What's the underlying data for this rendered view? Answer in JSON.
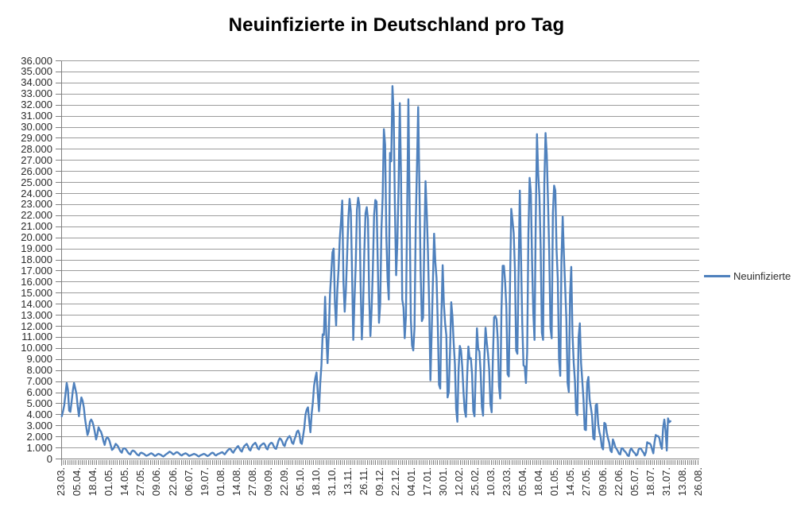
{
  "title": "Neuinfizierte in Deutschland pro Tag",
  "legend": {
    "label": "Neuinfizierte"
  },
  "colors": {
    "line": "#4f81bd",
    "grid": "#9c9c9c",
    "axis": "#7f7f7f",
    "text": "#2b2b2b",
    "title": "#000000",
    "background": "#ffffff"
  },
  "chart_data": {
    "type": "line",
    "title": "Neuinfizierte in Deutschland pro Tag",
    "legend_position": "right",
    "grid": true,
    "y_min": 0,
    "y_max": 36000,
    "y_step": 1000,
    "y_tick_labels": [
      "0",
      "1.000",
      "2.000",
      "3.000",
      "4.000",
      "5.000",
      "6.000",
      "7.000",
      "8.000",
      "9.000",
      "10.000",
      "11.000",
      "12.000",
      "13.000",
      "14.000",
      "15.000",
      "16.000",
      "17.000",
      "18.000",
      "19.000",
      "20.000",
      "21.000",
      "22.000",
      "23.000",
      "24.000",
      "25.000",
      "26.000",
      "27.000",
      "28.000",
      "29.000",
      "30.000",
      "31.000",
      "32.000",
      "33.000",
      "34.000",
      "35.000",
      "36.000"
    ],
    "x_tick_labels": [
      "23.03.",
      "05.04.",
      "18.04.",
      "01.05.",
      "14.05.",
      "27.05.",
      "09.06.",
      "22.06.",
      "06.07.",
      "19.07.",
      "01.08.",
      "14.08.",
      "27.08.",
      "09.09.",
      "22.09.",
      "05.10.",
      "18.10.",
      "31.10.",
      "13.11.",
      "26.11.",
      "09.12.",
      "22.12.",
      "04.01.",
      "17.01.",
      "30.01.",
      "12.02.",
      "25.02.",
      "10.03.",
      "23.03.",
      "05.04.",
      "18.04.",
      "01.05.",
      "14.05.",
      "27.05.",
      "09.06.",
      "22.06.",
      "05.07.",
      "18.07.",
      "31.07.",
      "13.08.",
      "26.08."
    ],
    "x_label_step_days": 13,
    "x_total_categories": 521,
    "series": [
      {
        "name": "Neuinfizierte",
        "color": "#4f81bd",
        "start_date": "23.03.2020",
        "end_date": "02.08.2021",
        "values": [
          3900,
          4350,
          4900,
          5900,
          6900,
          6300,
          4400,
          4300,
          5200,
          6200,
          6900,
          6400,
          5900,
          4750,
          3900,
          4900,
          5600,
          5300,
          4700,
          3650,
          2900,
          2200,
          2550,
          3400,
          3600,
          3400,
          3000,
          2450,
          1800,
          2250,
          2900,
          2650,
          2500,
          2150,
          1650,
          1300,
          1800,
          2000,
          1900,
          1650,
          1250,
          850,
          950,
          1150,
          1400,
          1300,
          1150,
          900,
          700,
          600,
          950,
          1000,
          950,
          800,
          620,
          500,
          450,
          700,
          800,
          750,
          650,
          500,
          400,
          350,
          550,
          600,
          550,
          500,
          400,
          320,
          360,
          420,
          500,
          550,
          500,
          400,
          310,
          350,
          450,
          500,
          450,
          400,
          310,
          260,
          350,
          450,
          520,
          600,
          700,
          640,
          550,
          450,
          500,
          600,
          650,
          600,
          500,
          400,
          350,
          450,
          500,
          550,
          500,
          410,
          310,
          350,
          400,
          450,
          500,
          450,
          400,
          310,
          260,
          350,
          400,
          450,
          500,
          450,
          360,
          300,
          350,
          450,
          550,
          600,
          550,
          400,
          350,
          450,
          500,
          550,
          600,
          650,
          550,
          450,
          600,
          750,
          870,
          950,
          900,
          700,
          600,
          800,
          950,
          1100,
          1200,
          1000,
          800,
          700,
          1000,
          1200,
          1300,
          1400,
          1200,
          900,
          800,
          1100,
          1300,
          1400,
          1500,
          1300,
          1000,
          900,
          1200,
          1300,
          1400,
          1450,
          1300,
          1000,
          900,
          1250,
          1400,
          1500,
          1450,
          1200,
          1000,
          950,
          1300,
          1700,
          1900,
          1800,
          1600,
          1300,
          1200,
          1600,
          1800,
          2000,
          2100,
          1900,
          1500,
          1400,
          1800,
          2100,
          2500,
          2600,
          2300,
          1500,
          1400,
          2100,
          2850,
          4050,
          4500,
          4700,
          3500,
          2450,
          4100,
          5150,
          6650,
          7350,
          7850,
          6000,
          4350,
          6850,
          8500,
          11300,
          11250,
          14700,
          11200,
          8700,
          11400,
          14950,
          16800,
          18700,
          19050,
          14200,
          12100,
          15350,
          17200,
          20000,
          21500,
          23400,
          16000,
          13350,
          15350,
          18500,
          21850,
          23550,
          22450,
          16950,
          10800,
          14400,
          17550,
          22600,
          23650,
          22950,
          15750,
          10850,
          13550,
          18650,
          22250,
          22800,
          21700,
          14600,
          11150,
          13600,
          17250,
          22050,
          23450,
          23300,
          17750,
          12350,
          14050,
          20800,
          23700,
          29850,
          28450,
          20200,
          16350,
          14450,
          27700,
          26950,
          33750,
          31300,
          22750,
          16650,
          19550,
          24750,
          32200,
          25550,
          14450,
          13750,
          10950,
          12900,
          22450,
          32550,
          22900,
          12700,
          10300,
          9850,
          11900,
          21250,
          26400,
          31850,
          24700,
          16950,
          12500,
          12800,
          19600,
          25150,
          22350,
          18700,
          13900,
          7150,
          11350,
          15950,
          20400,
          17850,
          16400,
          12250,
          6750,
          6400,
          13200,
          17550,
          14000,
          12300,
          11200,
          5600,
          6100,
          9700,
          14200,
          12900,
          10500,
          8600,
          4550,
          3400,
          8100,
          10250,
          9850,
          8350,
          6100,
          4400,
          3850,
          7550,
          10200,
          9100,
          9150,
          7700,
          4350,
          3900,
          8000,
          11850,
          10000,
          9750,
          7900,
          4750,
          3950,
          9000,
          11900,
          10600,
          9550,
          8100,
          5000,
          4250,
          9150,
          12850,
          12950,
          12650,
          10800,
          6600,
          5500,
          13450,
          17500,
          17500,
          16050,
          13750,
          7700,
          7500,
          15800,
          22650,
          21600,
          20450,
          17150,
          9850,
          9550,
          17050,
          24300,
          18100,
          12200,
          8500,
          8400,
          6900,
          9700,
          20350,
          25450,
          24100,
          17850,
          13250,
          10800,
          21700,
          29400,
          25850,
          23800,
          19200,
          11450,
          10800,
          24900,
          29500,
          27550,
          23400,
          18750,
          11900,
          10950,
          22250,
          24750,
          24300,
          18950,
          16300,
          9150,
          7550,
          18050,
          21950,
          18500,
          15650,
          12650,
          6900,
          6100,
          14900,
          17400,
          11350,
          8750,
          7100,
          4200,
          4000,
          11050,
          12300,
          8700,
          7100,
          5400,
          2700,
          2650,
          6900,
          7450,
          5400,
          4700,
          3900,
          1900,
          1800,
          4900,
          5000,
          3200,
          2450,
          2000,
          1100,
          900,
          3300,
          3200,
          2400,
          1900,
          1500,
          800,
          650,
          1800,
          1500,
          1100,
          950,
          750,
          500,
          450,
          1000,
          1000,
          800,
          700,
          550,
          350,
          300,
          800,
          1000,
          800,
          650,
          550,
          350,
          450,
          900,
          1000,
          950,
          750,
          600,
          350,
          650,
          1550,
          1450,
          1450,
          1300,
          900,
          550,
          1550,
          2200,
          2100,
          2100,
          1900,
          1300,
          950,
          2850,
          3600,
          2600,
          800,
          3700,
          3350,
          3450
        ]
      }
    ]
  }
}
